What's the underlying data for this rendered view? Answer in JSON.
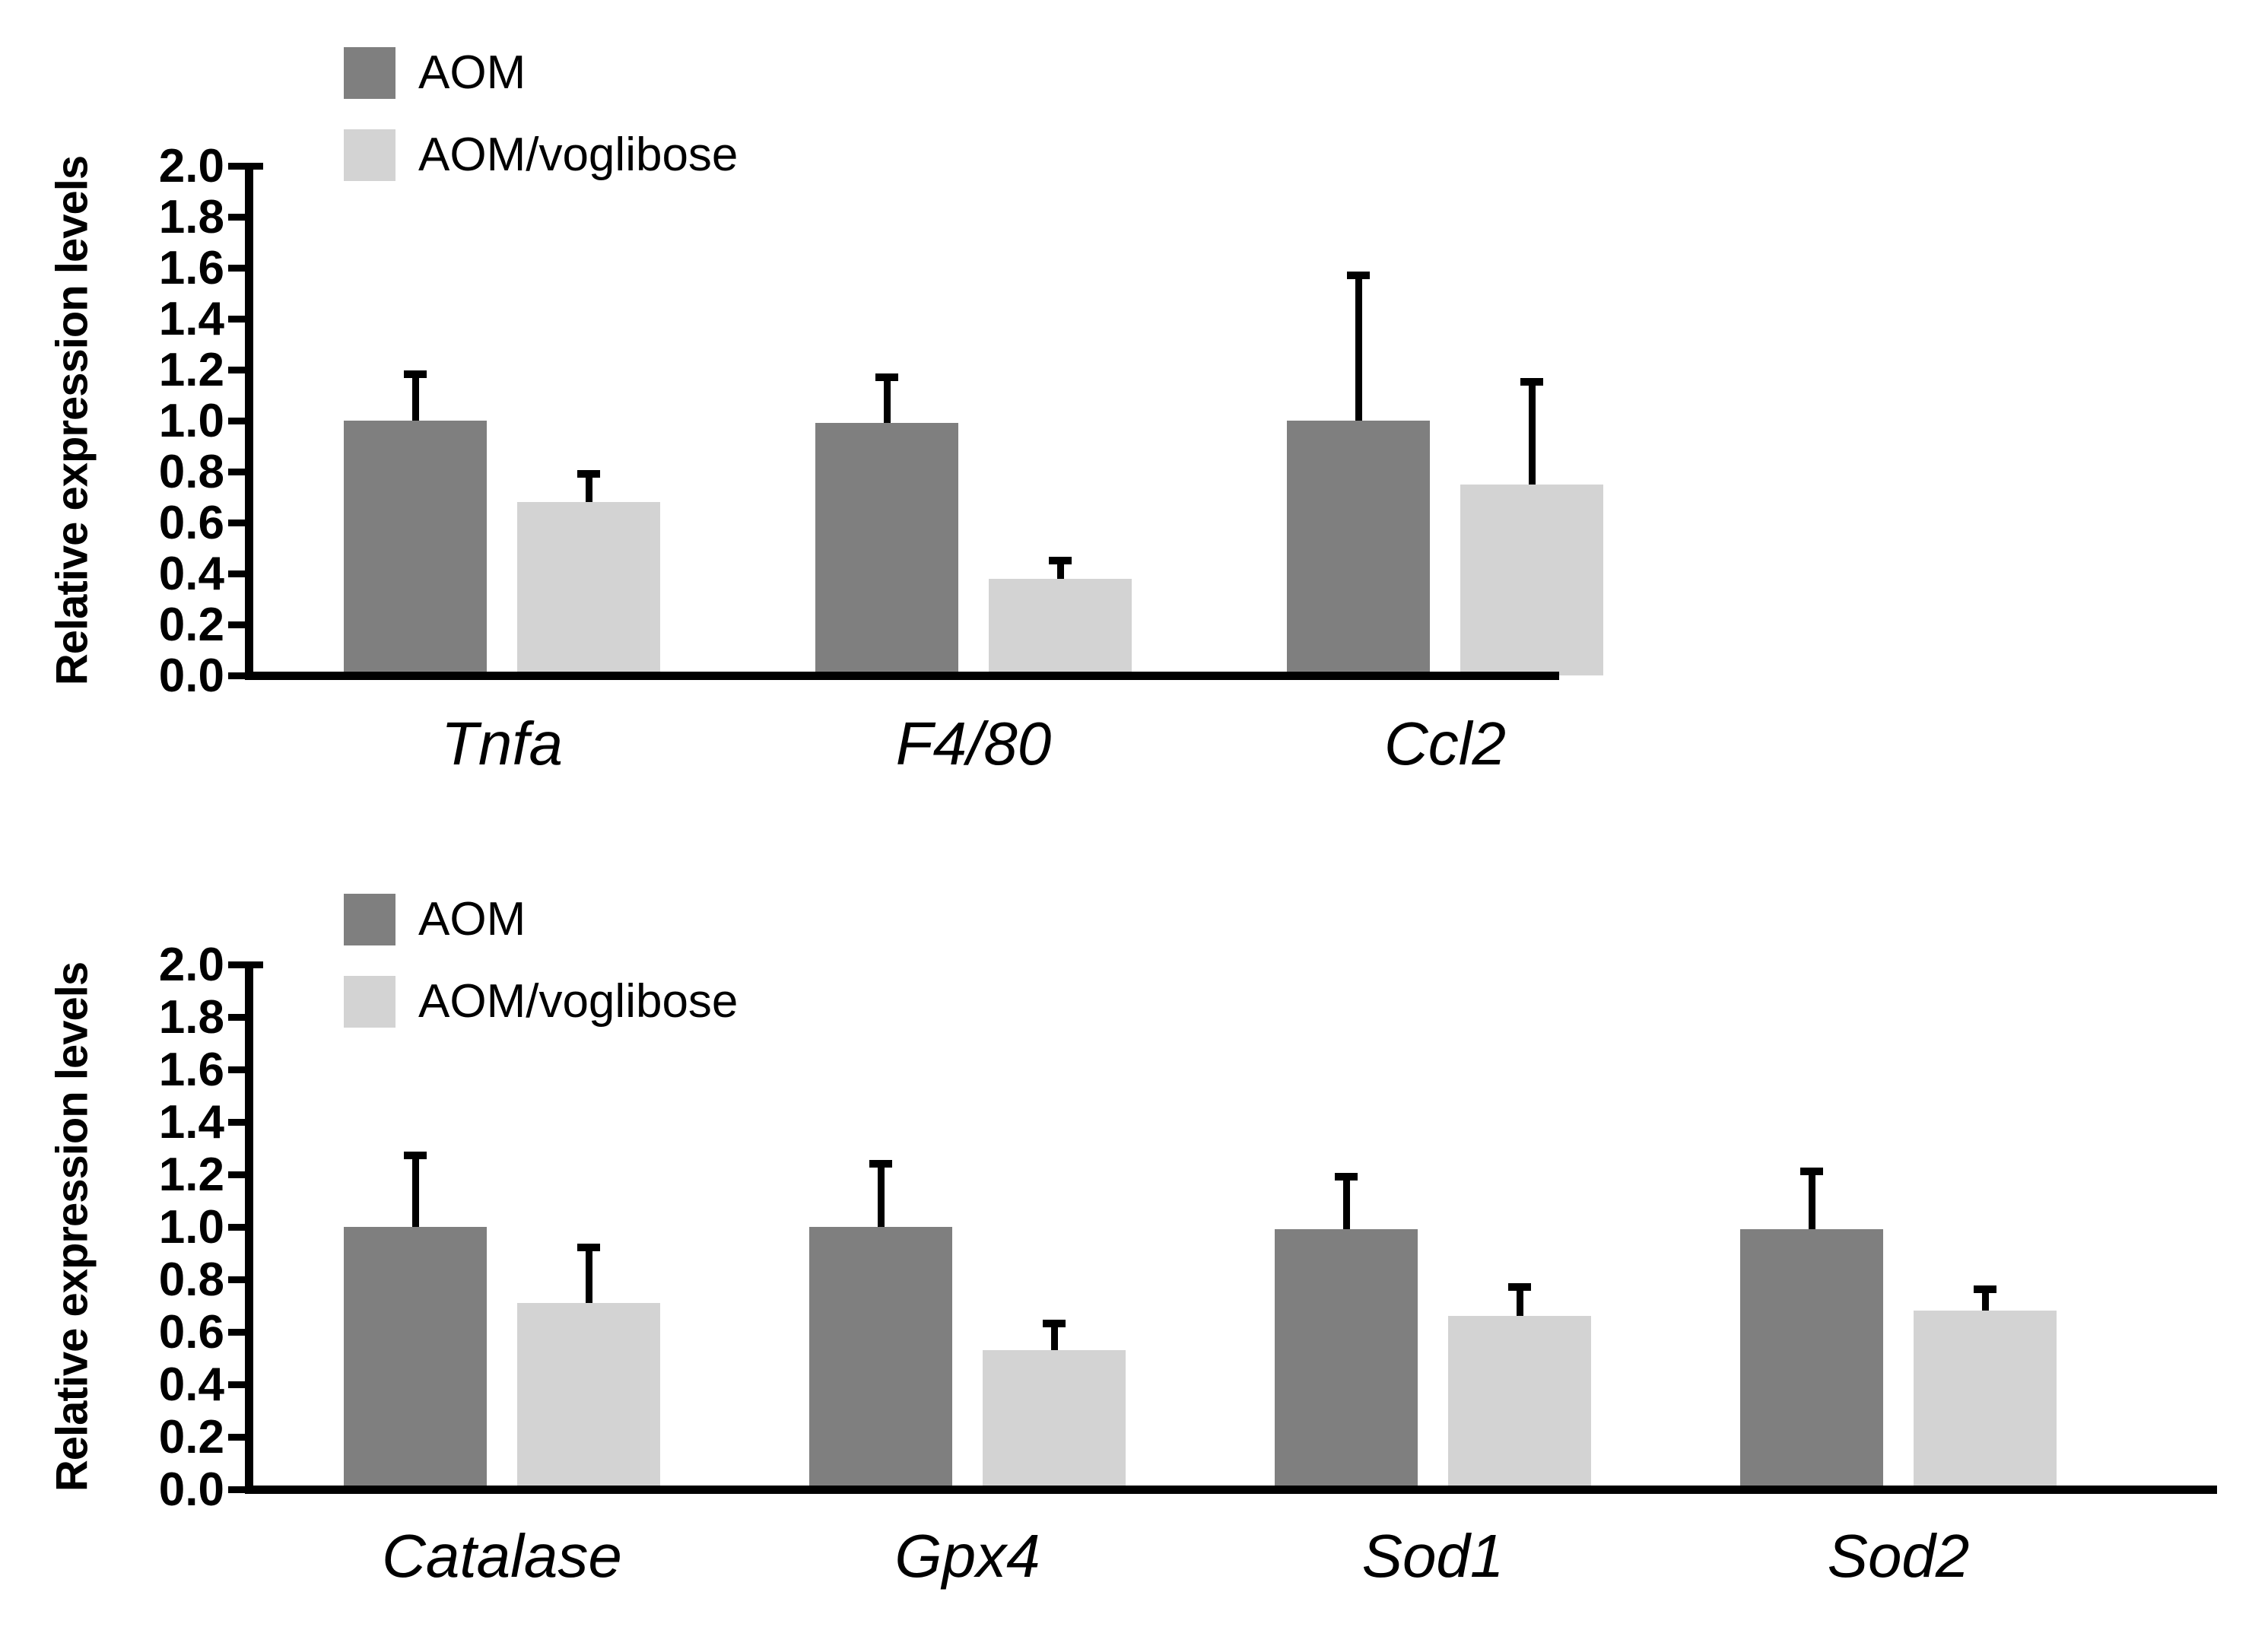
{
  "figure": {
    "background": "#ffffff",
    "axis_color": "#000000",
    "text_color": "#000000"
  },
  "chart_data": [
    {
      "type": "bar",
      "panel": "inflammatory-genes",
      "title": "",
      "xlabel": "",
      "ylabel": "Relative expression levels",
      "ylim": [
        0.0,
        2.0
      ],
      "ytick_interval": 0.2,
      "ytick_labels": [
        "0.0",
        "0.2",
        "0.4",
        "0.6",
        "0.8",
        "1.0",
        "1.2",
        "1.4",
        "1.6",
        "1.8",
        "2.0"
      ],
      "grid": false,
      "legend_position": "inside-top-left",
      "categories": [
        "Tnfa",
        "F4/80",
        "Ccl2"
      ],
      "categories_style": "italic",
      "error_bars": "upper-only",
      "series": [
        {
          "name": "AOM",
          "color": "#7f7f7f",
          "values": [
            1.0,
            0.99,
            1.0
          ],
          "errors_plus": [
            0.19,
            0.19,
            0.58
          ]
        },
        {
          "name": "AOM/voglibose",
          "color": "#d3d3d3",
          "values": [
            0.68,
            0.38,
            0.75
          ],
          "errors_plus": [
            0.12,
            0.08,
            0.41
          ]
        }
      ]
    },
    {
      "type": "bar",
      "panel": "antioxidant-genes",
      "title": "",
      "xlabel": "",
      "ylabel": "Relative expression levels",
      "ylim": [
        0.0,
        2.0
      ],
      "ytick_interval": 0.2,
      "ytick_labels": [
        "0.0",
        "0.2",
        "0.4",
        "0.6",
        "0.8",
        "1.0",
        "1.2",
        "1.4",
        "1.6",
        "1.8",
        "2.0"
      ],
      "grid": false,
      "legend_position": "inside-top-left",
      "categories": [
        "Catalase",
        "Gpx4",
        "Sod1",
        "Sod2"
      ],
      "categories_style": "italic",
      "error_bars": "upper-only",
      "series": [
        {
          "name": "AOM",
          "color": "#7f7f7f",
          "values": [
            1.0,
            1.0,
            0.99,
            0.99
          ],
          "errors_plus": [
            0.28,
            0.25,
            0.21,
            0.23
          ]
        },
        {
          "name": "AOM/voglibose",
          "color": "#d3d3d3",
          "values": [
            0.71,
            0.53,
            0.66,
            0.68
          ],
          "errors_plus": [
            0.22,
            0.11,
            0.12,
            0.09
          ]
        }
      ]
    }
  ]
}
